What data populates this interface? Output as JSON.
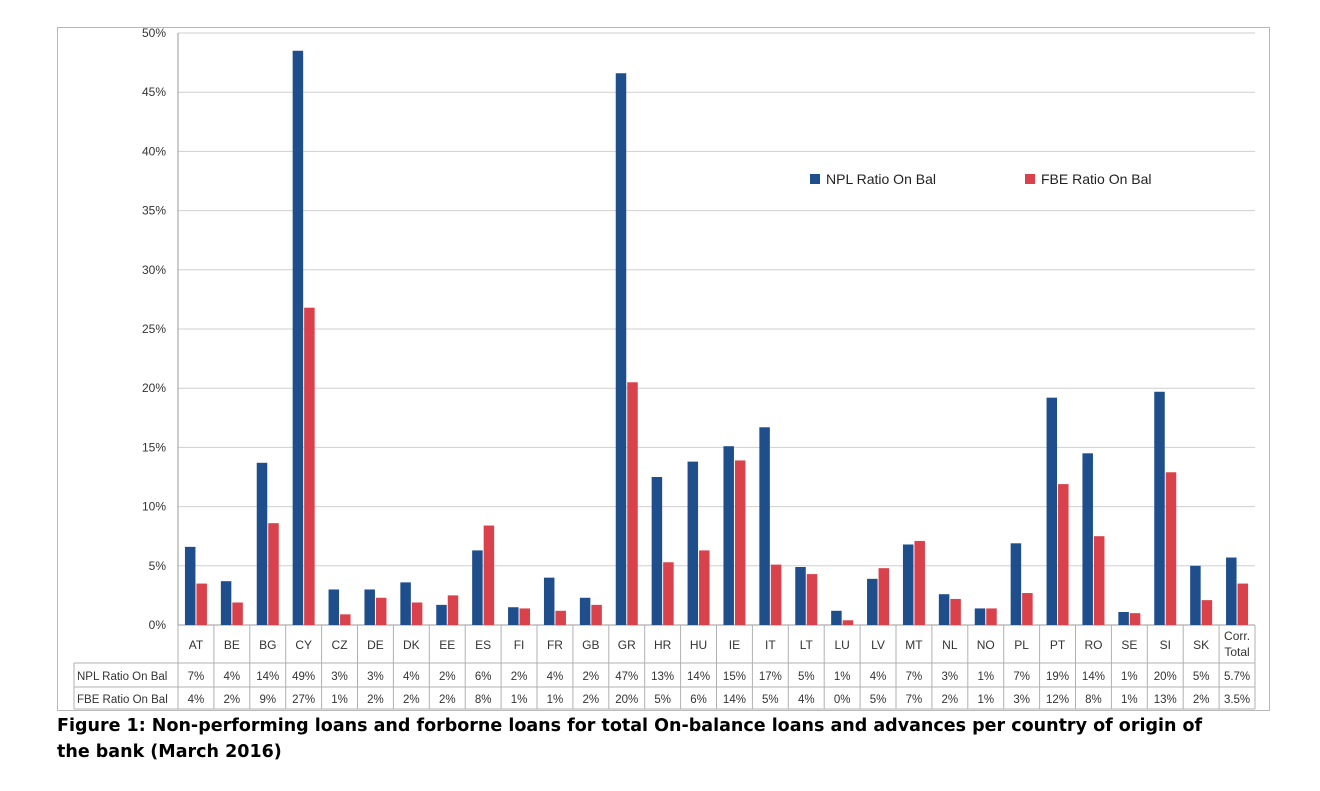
{
  "chart_data": {
    "type": "bar",
    "title": "",
    "xlabel": "",
    "ylabel": "",
    "ylim": [
      0,
      50
    ],
    "y_ticks": [
      "0%",
      "5%",
      "10%",
      "15%",
      "20%",
      "25%",
      "30%",
      "35%",
      "40%",
      "45%",
      "50%"
    ],
    "grid": true,
    "legend_position": "top-right",
    "categories": [
      "AT",
      "BE",
      "BG",
      "CY",
      "CZ",
      "DE",
      "DK",
      "EE",
      "ES",
      "FI",
      "FR",
      "GB",
      "GR",
      "HR",
      "HU",
      "IE",
      "IT",
      "LT",
      "LU",
      "LV",
      "MT",
      "NL",
      "NO",
      "PL",
      "PT",
      "RO",
      "SE",
      "SI",
      "SK",
      "Corr. Total"
    ],
    "series": [
      {
        "name": "NPL Ratio On Bal",
        "color": "#1f4e8c",
        "values": [
          6.6,
          3.7,
          13.7,
          48.5,
          3.0,
          3.0,
          3.6,
          1.7,
          6.3,
          1.5,
          4.0,
          2.3,
          46.6,
          12.5,
          13.8,
          15.1,
          16.7,
          4.9,
          1.2,
          3.9,
          6.8,
          2.6,
          1.4,
          6.9,
          19.2,
          14.5,
          1.1,
          19.7,
          5.0,
          5.7
        ],
        "table_labels": [
          "7%",
          "4%",
          "14%",
          "49%",
          "3%",
          "3%",
          "4%",
          "2%",
          "6%",
          "2%",
          "4%",
          "2%",
          "47%",
          "13%",
          "14%",
          "15%",
          "17%",
          "5%",
          "1%",
          "4%",
          "7%",
          "3%",
          "1%",
          "7%",
          "19%",
          "14%",
          "1%",
          "20%",
          "5%",
          "5.7%"
        ]
      },
      {
        "name": "FBE Ratio On Bal",
        "color": "#d9424b",
        "values": [
          3.5,
          1.9,
          8.6,
          26.8,
          0.9,
          2.3,
          1.9,
          2.5,
          8.4,
          1.4,
          1.2,
          1.7,
          20.5,
          5.3,
          6.3,
          13.9,
          5.1,
          4.3,
          0.4,
          4.8,
          7.1,
          2.2,
          1.4,
          2.7,
          11.9,
          7.5,
          1.0,
          12.9,
          2.1,
          3.5
        ],
        "table_labels": [
          "4%",
          "2%",
          "9%",
          "27%",
          "1%",
          "2%",
          "2%",
          "2%",
          "8%",
          "1%",
          "1%",
          "2%",
          "20%",
          "5%",
          "6%",
          "14%",
          "5%",
          "4%",
          "0%",
          "5%",
          "7%",
          "2%",
          "1%",
          "3%",
          "12%",
          "8%",
          "1%",
          "13%",
          "2%",
          "3.5%"
        ]
      }
    ]
  },
  "caption_lines": [
    "Figure 1: Non-performing loans and forborne loans for total On-balance loans and advances per country of origin of",
    "the bank (March 2016)"
  ]
}
